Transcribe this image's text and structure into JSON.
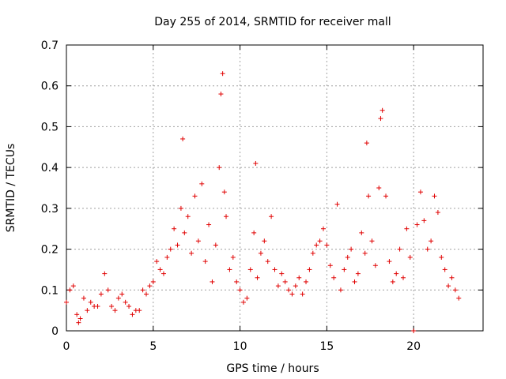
{
  "chart_data": {
    "type": "scatter",
    "title": "Day 255 of 2014, SRMTID for receiver mall",
    "xlabel": "GPS time / hours",
    "ylabel": "SRMTID / TECUs",
    "xlim": [
      0,
      24
    ],
    "ylim": [
      0,
      0.7
    ],
    "grid": true,
    "marker": "+",
    "color": "#e00000",
    "x_ticks": [
      0,
      5,
      10,
      15,
      20
    ],
    "x_tick_labels": [
      "0",
      "5",
      "10",
      "15",
      "20"
    ],
    "y_ticks": [
      0,
      0.1,
      0.2,
      0.3,
      0.4,
      0.5,
      0.6,
      0.7
    ],
    "y_tick_labels": [
      "0",
      "0.1",
      "0.2",
      "0.3",
      "0.4",
      "0.5",
      "0.6",
      "0.7"
    ],
    "series": [
      {
        "name": "SRMTID",
        "x": [
          0.0,
          0.2,
          0.4,
          0.6,
          0.7,
          0.8,
          1.0,
          1.2,
          1.4,
          1.6,
          1.8,
          2.0,
          2.2,
          2.4,
          2.6,
          2.8,
          3.0,
          3.2,
          3.4,
          3.6,
          3.8,
          4.0,
          4.2,
          4.4,
          4.6,
          4.8,
          5.0,
          5.2,
          5.4,
          5.6,
          5.8,
          6.0,
          6.2,
          6.4,
          6.6,
          6.7,
          6.8,
          7.0,
          7.2,
          7.4,
          7.6,
          7.8,
          8.0,
          8.2,
          8.4,
          8.6,
          8.8,
          8.9,
          9.0,
          9.1,
          9.2,
          9.4,
          9.6,
          9.8,
          10.0,
          10.2,
          10.4,
          10.6,
          10.8,
          10.9,
          11.0,
          11.2,
          11.4,
          11.6,
          11.8,
          12.0,
          12.2,
          12.4,
          12.6,
          12.8,
          13.0,
          13.2,
          13.4,
          13.6,
          13.8,
          14.0,
          14.2,
          14.4,
          14.6,
          14.8,
          15.0,
          15.2,
          15.4,
          15.6,
          15.8,
          16.0,
          16.2,
          16.4,
          16.6,
          16.8,
          17.0,
          17.2,
          17.3,
          17.4,
          17.6,
          17.8,
          18.0,
          18.1,
          18.2,
          18.4,
          18.6,
          18.8,
          19.0,
          19.2,
          19.4,
          19.6,
          19.8,
          20.0,
          20.2,
          20.4,
          20.6,
          20.8,
          21.0,
          21.2,
          21.4,
          21.6,
          21.8,
          22.0,
          22.2,
          22.4,
          22.6
        ],
        "y": [
          0.07,
          0.1,
          0.11,
          0.04,
          0.02,
          0.03,
          0.08,
          0.05,
          0.07,
          0.06,
          0.06,
          0.09,
          0.14,
          0.1,
          0.06,
          0.05,
          0.08,
          0.09,
          0.07,
          0.06,
          0.04,
          0.05,
          0.05,
          0.1,
          0.09,
          0.11,
          0.12,
          0.17,
          0.15,
          0.14,
          0.18,
          0.2,
          0.25,
          0.21,
          0.3,
          0.47,
          0.24,
          0.28,
          0.19,
          0.33,
          0.22,
          0.36,
          0.17,
          0.26,
          0.12,
          0.21,
          0.4,
          0.58,
          0.63,
          0.34,
          0.28,
          0.15,
          0.18,
          0.12,
          0.1,
          0.07,
          0.08,
          0.15,
          0.24,
          0.41,
          0.13,
          0.19,
          0.22,
          0.17,
          0.28,
          0.15,
          0.11,
          0.14,
          0.12,
          0.1,
          0.09,
          0.11,
          0.13,
          0.09,
          0.12,
          0.15,
          0.19,
          0.21,
          0.22,
          0.25,
          0.21,
          0.16,
          0.13,
          0.31,
          0.1,
          0.15,
          0.18,
          0.2,
          0.12,
          0.14,
          0.24,
          0.19,
          0.46,
          0.33,
          0.22,
          0.16,
          0.35,
          0.52,
          0.54,
          0.33,
          0.17,
          0.12,
          0.14,
          0.2,
          0.13,
          0.25,
          0.18,
          0.0,
          0.26,
          0.34,
          0.27,
          0.2,
          0.22,
          0.33,
          0.29,
          0.18,
          0.15,
          0.11,
          0.13,
          0.1,
          0.08
        ]
      }
    ]
  }
}
